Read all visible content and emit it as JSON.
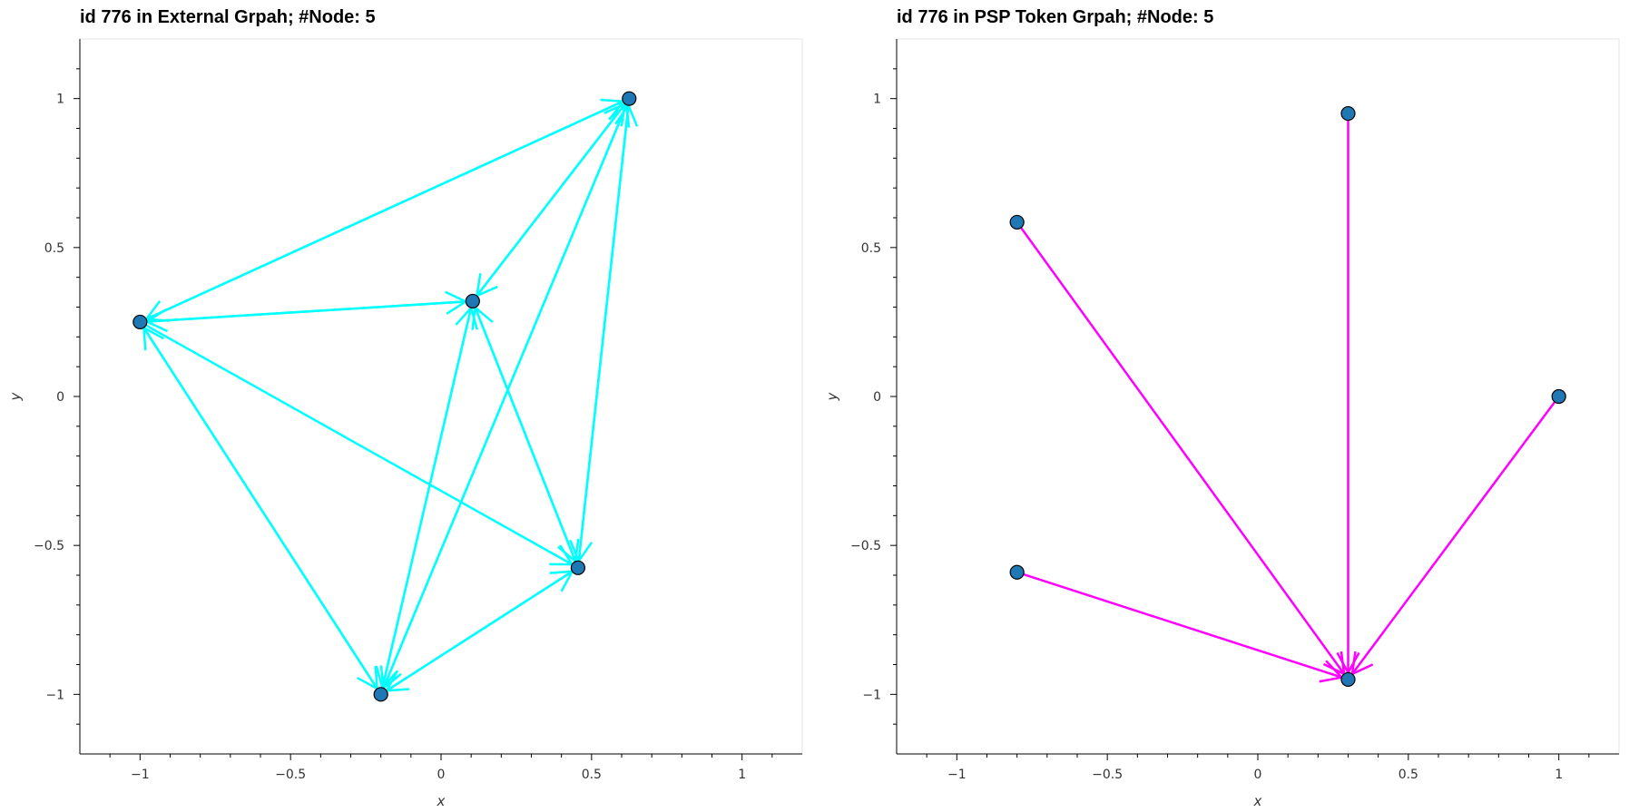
{
  "chart_data": [
    {
      "type": "network",
      "title": "id 776 in External Grpah; #Node: 5",
      "xlabel": "x",
      "ylabel": "y",
      "xlim": [
        -1.2,
        1.2
      ],
      "ylim": [
        -1.2,
        1.2
      ],
      "xticks": [
        -1,
        -0.5,
        0,
        0.5,
        1
      ],
      "yticks": [
        -1,
        -0.5,
        0,
        0.5,
        1
      ],
      "xtick_labels": [
        "−1",
        "−0.5",
        "0",
        "0.5",
        "1"
      ],
      "ytick_labels": [
        "−1",
        "−0.5",
        "0",
        "0.5",
        "1"
      ],
      "edge_color": "#00ffff",
      "node_color": "#1f77b4",
      "nodes": [
        {
          "id": "A",
          "x": -1.0,
          "y": 0.25
        },
        {
          "id": "B",
          "x": 0.625,
          "y": 1.0
        },
        {
          "id": "C",
          "x": 0.105,
          "y": 0.32
        },
        {
          "id": "D",
          "x": 0.455,
          "y": -0.575
        },
        {
          "id": "E",
          "x": -0.2,
          "y": -1.0
        }
      ],
      "edges": [
        {
          "source": "A",
          "target": "B"
        },
        {
          "source": "B",
          "target": "A"
        },
        {
          "source": "A",
          "target": "C"
        },
        {
          "source": "C",
          "target": "A"
        },
        {
          "source": "A",
          "target": "D"
        },
        {
          "source": "A",
          "target": "E"
        },
        {
          "source": "E",
          "target": "A"
        },
        {
          "source": "B",
          "target": "C"
        },
        {
          "source": "C",
          "target": "B"
        },
        {
          "source": "B",
          "target": "E"
        },
        {
          "source": "E",
          "target": "B"
        },
        {
          "source": "D",
          "target": "B"
        },
        {
          "source": "B",
          "target": "D"
        },
        {
          "source": "C",
          "target": "E"
        },
        {
          "source": "E",
          "target": "C"
        },
        {
          "source": "C",
          "target": "D"
        },
        {
          "source": "D",
          "target": "C"
        },
        {
          "source": "E",
          "target": "D"
        },
        {
          "source": "D",
          "target": "E"
        }
      ]
    },
    {
      "type": "network",
      "title": "id 776 in PSP Token Grpah; #Node: 5",
      "xlabel": "x",
      "ylabel": "y",
      "xlim": [
        -1.2,
        1.2
      ],
      "ylim": [
        -1.2,
        1.2
      ],
      "xticks": [
        -1,
        -0.5,
        0,
        0.5,
        1
      ],
      "yticks": [
        -1,
        -0.5,
        0,
        0.5,
        1
      ],
      "xtick_labels": [
        "−1",
        "−0.5",
        "0",
        "0.5",
        "1"
      ],
      "ytick_labels": [
        "−1",
        "−0.5",
        "0",
        "0.5",
        "1"
      ],
      "edge_color": "#ff00ff",
      "node_color": "#1f77b4",
      "nodes": [
        {
          "id": "P",
          "x": 0.3,
          "y": 0.95
        },
        {
          "id": "Q",
          "x": -0.8,
          "y": 0.585
        },
        {
          "id": "R",
          "x": 1.0,
          "y": 0.0
        },
        {
          "id": "S",
          "x": -0.8,
          "y": -0.59
        },
        {
          "id": "T",
          "x": 0.3,
          "y": -0.95
        }
      ],
      "edges": [
        {
          "source": "P",
          "target": "T"
        },
        {
          "source": "Q",
          "target": "T"
        },
        {
          "source": "R",
          "target": "T"
        },
        {
          "source": "S",
          "target": "T"
        }
      ]
    }
  ]
}
